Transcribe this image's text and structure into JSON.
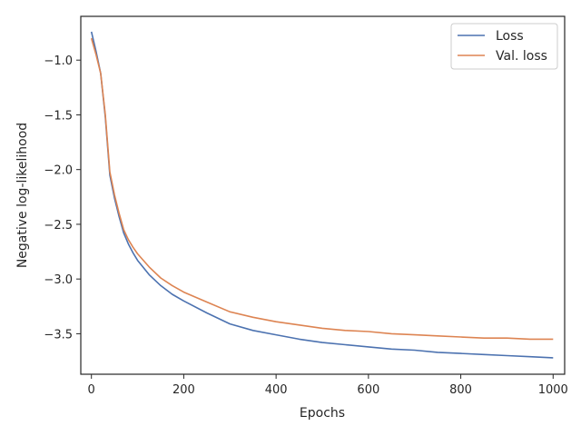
{
  "chart_data": {
    "type": "line",
    "title": "",
    "xlabel": "Epochs",
    "ylabel": "Negative log-likelihood",
    "xlim": [
      -23,
      1025
    ],
    "ylim": [
      -3.87,
      -0.6
    ],
    "xticks": [
      0,
      200,
      400,
      600,
      800,
      1000
    ],
    "xtick_labels": [
      "0",
      "200",
      "400",
      "600",
      "800",
      "1000"
    ],
    "yticks": [
      -1.0,
      -1.5,
      -2.0,
      -2.5,
      -3.0,
      -3.5
    ],
    "ytick_labels": [
      "−1.0",
      "−1.5",
      "−2.0",
      "−2.5",
      "−3.0",
      "−3.5"
    ],
    "grid": false,
    "legend_position": "top-right",
    "x": [
      0,
      10,
      20,
      30,
      40,
      50,
      60,
      70,
      80,
      90,
      100,
      125,
      150,
      175,
      200,
      250,
      300,
      350,
      400,
      450,
      500,
      550,
      600,
      650,
      700,
      750,
      800,
      850,
      900,
      950,
      1000
    ],
    "series": [
      {
        "name": "Loss",
        "color": "#4c72b0",
        "values": [
          -0.74,
          -0.92,
          -1.12,
          -1.52,
          -2.05,
          -2.26,
          -2.43,
          -2.58,
          -2.68,
          -2.76,
          -2.83,
          -2.96,
          -3.06,
          -3.14,
          -3.2,
          -3.31,
          -3.41,
          -3.47,
          -3.51,
          -3.55,
          -3.58,
          -3.6,
          -3.62,
          -3.64,
          -3.65,
          -3.67,
          -3.68,
          -3.69,
          -3.7,
          -3.71,
          -3.72
        ]
      },
      {
        "name": "Val. loss",
        "color": "#dd8452",
        "values": [
          -0.8,
          -0.95,
          -1.12,
          -1.5,
          -2.02,
          -2.23,
          -2.4,
          -2.55,
          -2.64,
          -2.71,
          -2.77,
          -2.89,
          -2.99,
          -3.06,
          -3.12,
          -3.21,
          -3.3,
          -3.35,
          -3.39,
          -3.42,
          -3.45,
          -3.47,
          -3.48,
          -3.5,
          -3.51,
          -3.52,
          -3.53,
          -3.54,
          -3.54,
          -3.55,
          -3.55
        ]
      }
    ]
  }
}
